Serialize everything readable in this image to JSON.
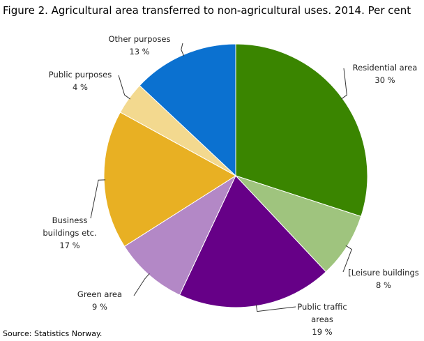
{
  "chart_data": {
    "type": "pie",
    "title": "Figure 2. Agricultural area transferred to non-agricultural uses. 2014. Per cent",
    "source": "Source: Statistics Norway.",
    "categories": [
      "Residential area",
      "[Leisure buildings",
      "Public traffic areas",
      "Green area",
      "Business buildings etc.",
      "Public purposes",
      "Other purposes"
    ],
    "values": [
      30,
      8,
      19,
      9,
      17,
      4,
      13
    ],
    "value_labels": [
      "30 %",
      "8 %",
      "19 %",
      "9 %",
      "17 %",
      "4 %",
      "13 %"
    ],
    "colors": [
      "#3a8500",
      "#9fc47e",
      "#660087",
      "#b388c6",
      "#e8b023",
      "#f3d98f",
      "#0b71d0"
    ]
  }
}
